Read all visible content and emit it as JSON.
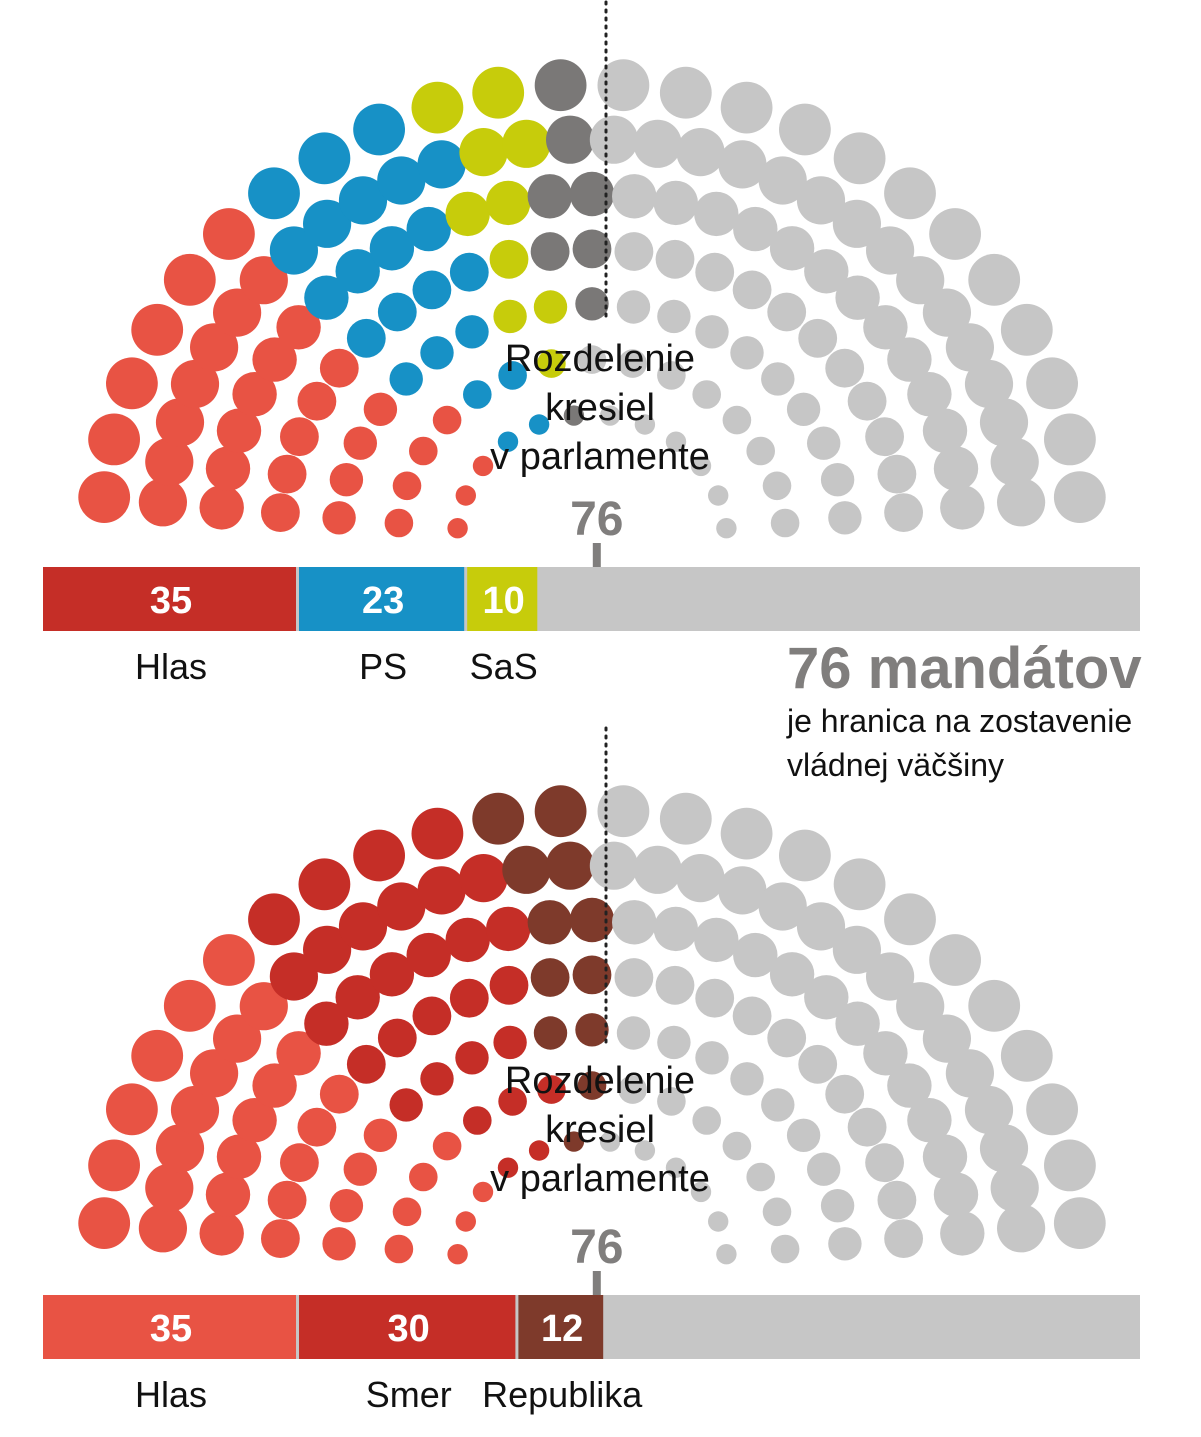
{
  "parliament_title": [
    "Rozdelenie",
    "kresiel",
    "v parlamente"
  ],
  "majority_threshold": 76,
  "majority_note": {
    "headline": "76 mandátov",
    "line1": "je hranica na zostavenie",
    "line2": "vládnej väčšiny"
  },
  "colors": {
    "hlas": "#e85344",
    "hlas_bar_top": "#c52e27",
    "ps": "#1791c6",
    "sas": "#c7cc0b",
    "grey_dark": "#7a7877",
    "smer": "#c52e27",
    "republika": "#7e3a2b",
    "empty": "#c6c6c6",
    "marker": "#807e7d"
  },
  "chart_data": [
    {
      "type": "bar",
      "title": "Rozdelenie kresiel v parlamente",
      "total_seats": 150,
      "majority": 76,
      "series": [
        {
          "name": "Hlas",
          "value": 35,
          "color": "#c52e27",
          "dot_color": "#e85344"
        },
        {
          "name": "PS",
          "value": 23,
          "color": "#1791c6",
          "dot_color": "#1791c6"
        },
        {
          "name": "SaS",
          "value": 10,
          "color": "#c7cc0b",
          "dot_color": "#c7cc0b"
        }
      ],
      "extra_dots": [
        {
          "value": 8,
          "color": "#7a7877"
        }
      ],
      "remaining_color": "#c6c6c6"
    },
    {
      "type": "bar",
      "title": "Rozdelenie kresiel v parlamente",
      "total_seats": 150,
      "majority": 76,
      "series": [
        {
          "name": "Hlas",
          "value": 35,
          "color": "#e85344",
          "dot_color": "#e85344"
        },
        {
          "name": "Smer",
          "value": 30,
          "color": "#c52e27",
          "dot_color": "#c52e27"
        },
        {
          "name": "Republika",
          "value": 12,
          "color": "#7e3a2b",
          "dot_color": "#7e3a2b"
        }
      ],
      "extra_dots": [],
      "remaining_color": "#c6c6c6"
    }
  ]
}
